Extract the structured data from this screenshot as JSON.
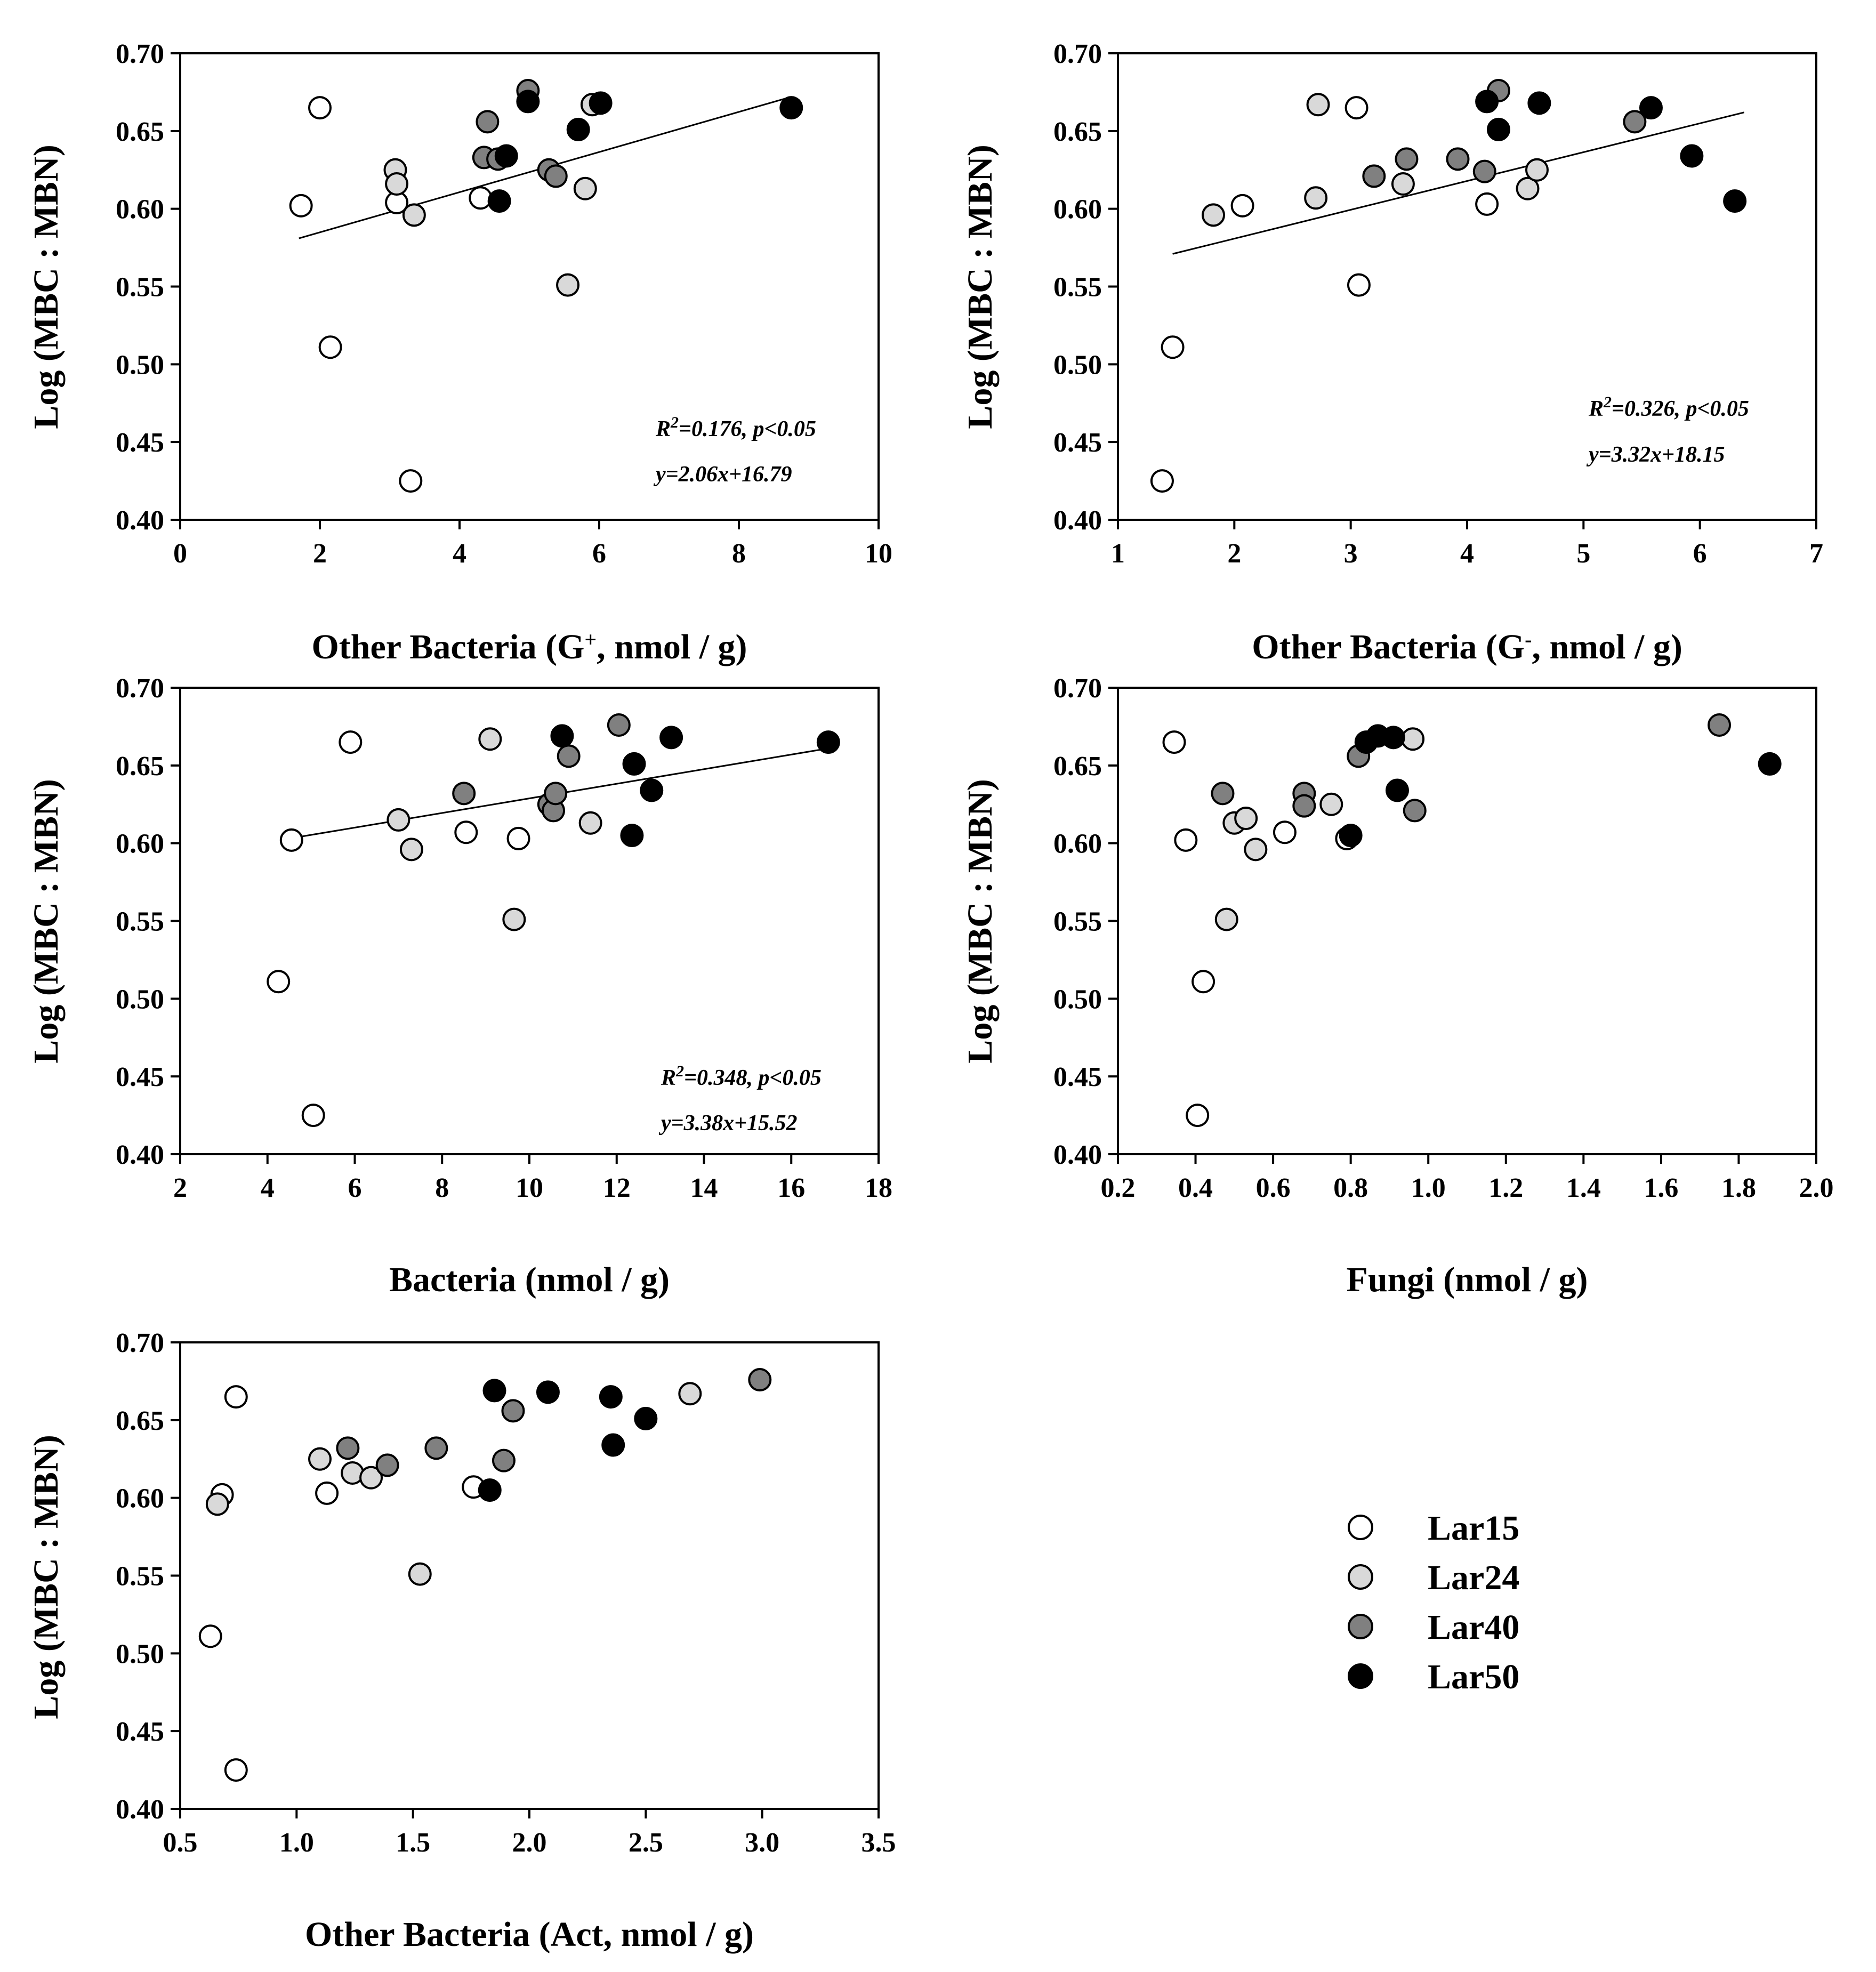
{
  "colors": {
    "Lar15": "#ffffff",
    "Lar24": "#d9d9d9",
    "Lar40": "#808080",
    "Lar50": "#000000"
  },
  "legend": [
    "Lar15",
    "Lar24",
    "Lar40",
    "Lar50"
  ],
  "chart_data": [
    {
      "type": "scatter",
      "xlabel": "Other Bacteria (G",
      "xlabel_sup": "+",
      "xlabel_suffix": ", nmol / g)",
      "ylabel": "Log (MBC : MBN)",
      "xlim": [
        0,
        10
      ],
      "ylim": [
        0.4,
        0.7
      ],
      "xticks": [
        "0",
        "2",
        "4",
        "6",
        "8",
        "10"
      ],
      "yticks": [
        "0.40",
        "0.45",
        "0.50",
        "0.55",
        "0.60",
        "0.65",
        "0.70"
      ],
      "series": [
        {
          "name": "Lar15",
          "points": [
            [
              2.0,
              0.665
            ],
            [
              1.73,
              0.602
            ],
            [
              2.15,
              0.511
            ],
            [
              3.3,
              0.425
            ],
            [
              3.1,
              0.604
            ],
            [
              4.3,
              0.607
            ]
          ]
        },
        {
          "name": "Lar24",
          "points": [
            [
              3.08,
              0.625
            ],
            [
              3.1,
              0.616
            ],
            [
              3.35,
              0.596
            ],
            [
              5.8,
              0.613
            ],
            [
              5.55,
              0.551
            ],
            [
              5.9,
              0.667
            ]
          ]
        },
        {
          "name": "Lar40",
          "points": [
            [
              4.4,
              0.656
            ],
            [
              4.35,
              0.633
            ],
            [
              4.55,
              0.632
            ],
            [
              5.28,
              0.625
            ],
            [
              5.38,
              0.621
            ],
            [
              4.98,
              0.676
            ]
          ]
        },
        {
          "name": "Lar50",
          "points": [
            [
              4.98,
              0.669
            ],
            [
              6.02,
              0.668
            ],
            [
              5.7,
              0.651
            ],
            [
              4.67,
              0.634
            ],
            [
              4.57,
              0.605
            ],
            [
              8.75,
              0.665
            ]
          ]
        }
      ],
      "fit": {
        "x": [
          1.7,
          8.75
        ],
        "y": [
          0.581,
          0.672
        ]
      },
      "r2": "R",
      "r2_sup": "2",
      "r2_text": "=0.176, p<0.05",
      "equation": "y=2.06x+16.79"
    },
    {
      "type": "scatter",
      "xlabel": "Other Bacteria (G",
      "xlabel_sup": "-",
      "xlabel_suffix": ", nmol / g)",
      "ylabel": "Log (MBC : MBN)",
      "xlim": [
        1,
        7
      ],
      "ylim": [
        0.4,
        0.7
      ],
      "xticks": [
        "1",
        "2",
        "3",
        "4",
        "5",
        "6",
        "7"
      ],
      "yticks": [
        "0.40",
        "0.45",
        "0.50",
        "0.55",
        "0.60",
        "0.65",
        "0.70"
      ],
      "series": [
        {
          "name": "Lar15",
          "points": [
            [
              1.38,
              0.425
            ],
            [
              1.47,
              0.511
            ],
            [
              3.05,
              0.665
            ],
            [
              3.07,
              0.551
            ],
            [
              4.17,
              0.603
            ],
            [
              2.07,
              0.602
            ]
          ]
        },
        {
          "name": "Lar24",
          "points": [
            [
              1.82,
              0.596
            ],
            [
              2.7,
              0.607
            ],
            [
              2.72,
              0.667
            ],
            [
              3.45,
              0.616
            ],
            [
              4.52,
              0.613
            ],
            [
              4.6,
              0.625
            ]
          ]
        },
        {
          "name": "Lar40",
          "points": [
            [
              3.2,
              0.621
            ],
            [
              3.48,
              0.632
            ],
            [
              3.92,
              0.632
            ],
            [
              4.15,
              0.624
            ],
            [
              4.27,
              0.676
            ],
            [
              5.44,
              0.656
            ]
          ]
        },
        {
          "name": "Lar50",
          "points": [
            [
              4.17,
              0.669
            ],
            [
              4.27,
              0.651
            ],
            [
              4.62,
              0.668
            ],
            [
              5.58,
              0.665
            ],
            [
              5.93,
              0.634
            ],
            [
              6.3,
              0.605
            ]
          ]
        }
      ],
      "fit": {
        "x": [
          1.47,
          6.38
        ],
        "y": [
          0.571,
          0.662
        ]
      },
      "r2": "R",
      "r2_sup": "2",
      "r2_text": "=0.326, p<0.05",
      "equation": "y=3.32x+18.15"
    },
    {
      "type": "scatter",
      "xlabel": "Bacteria (nmol / g)",
      "ylabel": "Log (MBC : MBN)",
      "xlim": [
        2,
        18
      ],
      "ylim": [
        0.4,
        0.7
      ],
      "xticks": [
        "2",
        "4",
        "6",
        "8",
        "10",
        "12",
        "14",
        "16",
        "18"
      ],
      "yticks": [
        "0.40",
        "0.45",
        "0.50",
        "0.55",
        "0.60",
        "0.65",
        "0.70"
      ],
      "series": [
        {
          "name": "Lar15",
          "points": [
            [
              5.9,
              0.665
            ],
            [
              4.55,
              0.602
            ],
            [
              4.25,
              0.511
            ],
            [
              5.05,
              0.425
            ],
            [
              8.55,
              0.607
            ],
            [
              9.75,
              0.603
            ]
          ]
        },
        {
          "name": "Lar24",
          "points": [
            [
              7.0,
              0.615
            ],
            [
              7.3,
              0.596
            ],
            [
              9.1,
              0.667
            ],
            [
              11.4,
              0.613
            ],
            [
              9.65,
              0.551
            ]
          ]
        },
        {
          "name": "Lar40",
          "points": [
            [
              8.5,
              0.632
            ],
            [
              10.45,
              0.625
            ],
            [
              10.55,
              0.621
            ],
            [
              10.6,
              0.632
            ],
            [
              10.9,
              0.656
            ],
            [
              12.05,
              0.676
            ]
          ]
        },
        {
          "name": "Lar50",
          "points": [
            [
              10.75,
              0.669
            ],
            [
              12.4,
              0.651
            ],
            [
              12.35,
              0.605
            ],
            [
              12.8,
              0.634
            ],
            [
              13.25,
              0.668
            ],
            [
              16.85,
              0.665
            ]
          ]
        }
      ],
      "fit": {
        "x": [
          4.5,
          16.85
        ],
        "y": [
          0.603,
          0.661
        ]
      },
      "r2": "R",
      "r2_sup": "2",
      "r2_text": "=0.348, p<0.05",
      "equation": "y=3.38x+15.52"
    },
    {
      "type": "scatter",
      "xlabel": "Fungi (nmol / g)",
      "ylabel": "Log (MBC : MBN)",
      "xlim": [
        0.2,
        2.0
      ],
      "ylim": [
        0.4,
        0.7
      ],
      "xticks": [
        "0.2",
        "0.4",
        "0.6",
        "0.8",
        "1.0",
        "1.2",
        "1.4",
        "1.6",
        "1.8",
        "2.0"
      ],
      "yticks": [
        "0.40",
        "0.45",
        "0.50",
        "0.55",
        "0.60",
        "0.65",
        "0.70"
      ],
      "series": [
        {
          "name": "Lar15",
          "points": [
            [
              0.345,
              0.665
            ],
            [
              0.375,
              0.602
            ],
            [
              0.42,
              0.511
            ],
            [
              0.405,
              0.425
            ],
            [
              0.63,
              0.607
            ],
            [
              0.79,
              0.603
            ]
          ]
        },
        {
          "name": "Lar24",
          "points": [
            [
              0.5,
              0.613
            ],
            [
              0.53,
              0.616
            ],
            [
              0.555,
              0.596
            ],
            [
              0.48,
              0.551
            ],
            [
              0.75,
              0.625
            ],
            [
              0.96,
              0.667
            ]
          ]
        },
        {
          "name": "Lar40",
          "points": [
            [
              0.47,
              0.632
            ],
            [
              0.68,
              0.632
            ],
            [
              0.68,
              0.624
            ],
            [
              0.82,
              0.656
            ],
            [
              0.965,
              0.621
            ],
            [
              1.75,
              0.676
            ]
          ]
        },
        {
          "name": "Lar50",
          "points": [
            [
              0.8,
              0.605
            ],
            [
              0.84,
              0.665
            ],
            [
              0.87,
              0.669
            ],
            [
              0.91,
              0.668
            ],
            [
              0.92,
              0.634
            ],
            [
              1.88,
              0.651
            ]
          ]
        }
      ]
    },
    {
      "type": "scatter",
      "xlabel": "Other Bacteria (Act, nmol / g)",
      "ylabel": "Log (MBC : MBN)",
      "xlim": [
        0.5,
        3.5
      ],
      "ylim": [
        0.4,
        0.7
      ],
      "xticks": [
        "0.5",
        "1.0",
        "1.5",
        "2.0",
        "2.5",
        "3.0",
        "3.5"
      ],
      "yticks": [
        "0.40",
        "0.45",
        "0.50",
        "0.55",
        "0.60",
        "0.65",
        "0.70"
      ],
      "series": [
        {
          "name": "Lar15",
          "points": [
            [
              0.74,
              0.665
            ],
            [
              0.68,
              0.602
            ],
            [
              0.63,
              0.511
            ],
            [
              0.74,
              0.425
            ],
            [
              1.13,
              0.603
            ],
            [
              1.76,
              0.607
            ]
          ]
        },
        {
          "name": "Lar24",
          "points": [
            [
              0.66,
              0.596
            ],
            [
              1.1,
              0.625
            ],
            [
              1.24,
              0.616
            ],
            [
              1.32,
              0.613
            ],
            [
              1.53,
              0.551
            ],
            [
              2.69,
              0.667
            ]
          ]
        },
        {
          "name": "Lar40",
          "points": [
            [
              1.22,
              0.632
            ],
            [
              1.39,
              0.621
            ],
            [
              1.6,
              0.632
            ],
            [
              1.89,
              0.624
            ],
            [
              1.93,
              0.656
            ],
            [
              2.99,
              0.676
            ]
          ]
        },
        {
          "name": "Lar50",
          "points": [
            [
              1.83,
              0.605
            ],
            [
              1.85,
              0.669
            ],
            [
              2.08,
              0.668
            ],
            [
              2.35,
              0.665
            ],
            [
              2.36,
              0.634
            ],
            [
              2.5,
              0.651
            ]
          ]
        }
      ]
    }
  ]
}
